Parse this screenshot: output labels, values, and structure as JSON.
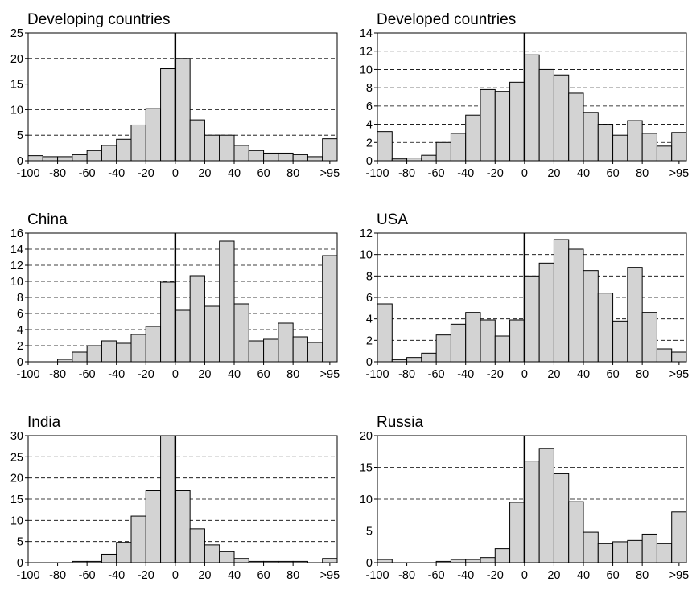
{
  "chart_data": [
    {
      "type": "bar",
      "title": "Developing countries",
      "xlabel": "",
      "ylabel": "",
      "ylim": [
        0,
        25
      ],
      "yticks": [
        0,
        5,
        10,
        15,
        20,
        25
      ],
      "xticks": [
        "-100",
        "-80",
        "-60",
        "-40",
        "-20",
        "0",
        "20",
        "40",
        "60",
        "80",
        ">95"
      ],
      "bin_start": -100,
      "bin_width": 10,
      "reference_line_x": 0,
      "grid": "horizontal dashed",
      "bar_color": "#d3d3d3",
      "values": [
        1.0,
        0.8,
        0.8,
        1.2,
        2.0,
        3.0,
        4.2,
        7.0,
        10.2,
        18.0,
        20.0,
        8.0,
        5.0,
        5.0,
        3.0,
        2.0,
        1.5,
        1.5,
        1.2,
        0.8,
        4.3
      ]
    },
    {
      "type": "bar",
      "title": "Developed countries",
      "xlabel": "",
      "ylabel": "",
      "ylim": [
        0,
        14
      ],
      "yticks": [
        0,
        2,
        4,
        6,
        8,
        10,
        12,
        14
      ],
      "xticks": [
        "-100",
        "-80",
        "-60",
        "-40",
        "-20",
        "0",
        "20",
        "40",
        "60",
        "80",
        ">95"
      ],
      "bin_start": -100,
      "bin_width": 10,
      "reference_line_x": 0,
      "grid": "horizontal dashed",
      "bar_color": "#d3d3d3",
      "values": [
        3.2,
        0.2,
        0.3,
        0.6,
        2.0,
        3.0,
        5.0,
        7.8,
        7.6,
        8.6,
        11.6,
        10.0,
        9.4,
        7.4,
        5.3,
        4.0,
        2.8,
        4.4,
        3.0,
        1.6,
        3.1
      ]
    },
    {
      "type": "bar",
      "title": "China",
      "xlabel": "",
      "ylabel": "",
      "ylim": [
        0,
        16
      ],
      "yticks": [
        0,
        2,
        4,
        6,
        8,
        10,
        12,
        14,
        16
      ],
      "xticks": [
        "-100",
        "-80",
        "-60",
        "-40",
        "-20",
        "0",
        "20",
        "40",
        "60",
        "80",
        ">95"
      ],
      "bin_start": -100,
      "bin_width": 10,
      "reference_line_x": 0,
      "grid": "horizontal dashed",
      "bar_color": "#d3d3d3",
      "values": [
        0.0,
        0.0,
        0.3,
        1.2,
        2.0,
        2.6,
        2.3,
        3.4,
        4.4,
        9.9,
        6.4,
        10.7,
        6.9,
        15.0,
        7.2,
        2.6,
        2.8,
        4.8,
        3.1,
        2.4,
        13.2
      ]
    },
    {
      "type": "bar",
      "title": "USA",
      "xlabel": "",
      "ylabel": "",
      "ylim": [
        0,
        12
      ],
      "yticks": [
        0,
        2,
        4,
        6,
        8,
        10,
        12
      ],
      "xticks": [
        "-100",
        "-80",
        "-60",
        "-40",
        "-20",
        "0",
        "20",
        "40",
        "60",
        "80",
        ">95"
      ],
      "bin_start": -100,
      "bin_width": 10,
      "reference_line_x": 0,
      "grid": "horizontal dashed",
      "bar_color": "#d3d3d3",
      "values": [
        5.4,
        0.2,
        0.4,
        0.8,
        2.5,
        3.5,
        4.6,
        3.9,
        2.4,
        3.9,
        8.0,
        9.2,
        11.4,
        10.5,
        8.5,
        6.4,
        3.8,
        8.8,
        4.6,
        1.2,
        0.9
      ]
    },
    {
      "type": "bar",
      "title": "India",
      "xlabel": "",
      "ylabel": "",
      "ylim": [
        0,
        30
      ],
      "yticks": [
        0,
        5,
        10,
        15,
        20,
        25,
        30
      ],
      "xticks": [
        "-100",
        "-80",
        "-60",
        "-40",
        "-20",
        "0",
        "20",
        "40",
        "60",
        "80",
        ">95"
      ],
      "bin_start": -100,
      "bin_width": 10,
      "reference_line_x": 0,
      "grid": "horizontal dashed",
      "bar_color": "#d3d3d3",
      "values": [
        0.0,
        0.0,
        0.0,
        0.3,
        0.3,
        2.0,
        4.8,
        11.0,
        17.0,
        30.0,
        17.0,
        8.0,
        4.2,
        2.6,
        1.0,
        0.3,
        0.3,
        0.3,
        0.3,
        0.0,
        1.0
      ]
    },
    {
      "type": "bar",
      "title": "Russia",
      "xlabel": "",
      "ylabel": "",
      "ylim": [
        0,
        20
      ],
      "yticks": [
        0,
        5,
        10,
        15,
        20
      ],
      "xticks": [
        "-100",
        "-80",
        "-60",
        "-40",
        "-20",
        "0",
        "20",
        "40",
        "60",
        "80",
        ">95"
      ],
      "bin_start": -100,
      "bin_width": 10,
      "reference_line_x": 0,
      "grid": "horizontal dashed",
      "bar_color": "#d3d3d3",
      "values": [
        0.5,
        0.0,
        0.0,
        0.0,
        0.2,
        0.5,
        0.5,
        0.8,
        2.2,
        9.5,
        16.0,
        18.0,
        14.0,
        9.6,
        4.8,
        3.0,
        3.3,
        3.5,
        4.5,
        3.0,
        8.0
      ]
    }
  ]
}
